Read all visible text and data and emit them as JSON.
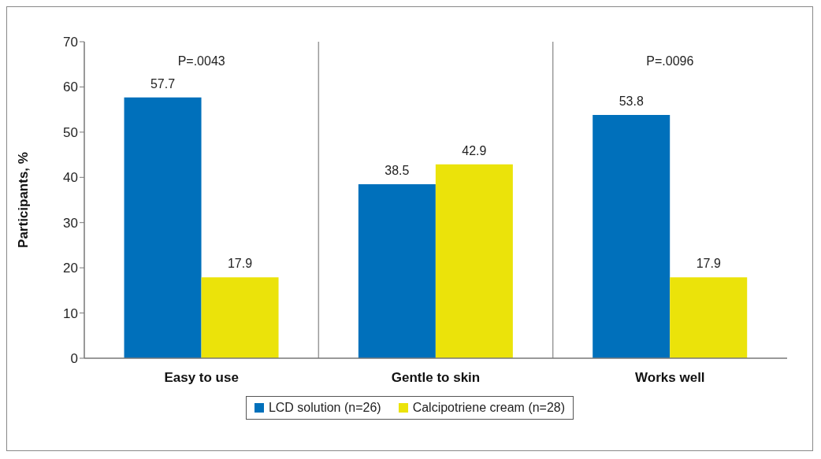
{
  "chart_data": {
    "type": "bar",
    "ylabel": "Participants, %",
    "categories": [
      "Easy to use",
      "Gentle to skin",
      "Works well"
    ],
    "series": [
      {
        "name": "LCD solution (n=26)",
        "color": "#0070bb",
        "values": [
          57.7,
          38.5,
          53.8
        ]
      },
      {
        "name": "Calcipotriene cream (n=28)",
        "color": "#ebe30a",
        "values": [
          17.9,
          42.9,
          17.9
        ]
      }
    ],
    "ylim": [
      0,
      70
    ],
    "yticks": [
      0,
      10,
      20,
      30,
      40,
      50,
      60,
      70
    ],
    "data_labels": true,
    "legend": "bottom",
    "grid": false,
    "annotations": [
      "P=.0043",
      "P=.0096"
    ]
  }
}
